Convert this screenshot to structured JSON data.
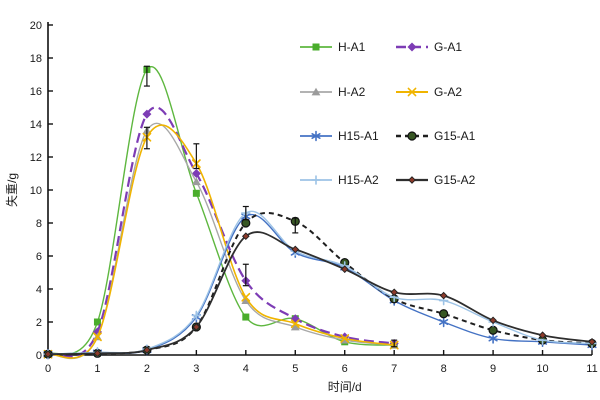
{
  "chart_data": {
    "type": "line",
    "title": "",
    "xlabel": "时间/d",
    "ylabel": "失重/g",
    "xlim": [
      0,
      11
    ],
    "ylim": [
      0,
      20
    ],
    "xticks": [
      0,
      1,
      2,
      3,
      4,
      5,
      6,
      7,
      8,
      9,
      10,
      11
    ],
    "yticks": [
      0,
      2,
      4,
      6,
      8,
      10,
      12,
      14,
      16,
      18,
      20
    ],
    "grid": false,
    "legend_position": "inside-top-center",
    "legend_columns": 2,
    "error_bar_color": "#111111",
    "series": [
      {
        "name": "H-A1",
        "color": "#5eb73f",
        "marker": "square",
        "marker_fill": "#4aad2c",
        "dash": "solid",
        "width": 1.4,
        "x": [
          0,
          1,
          2,
          3,
          4,
          5,
          6,
          7
        ],
        "y": [
          0.05,
          2.0,
          17.3,
          9.8,
          2.3,
          2.2,
          0.8,
          0.6
        ]
      },
      {
        "name": "G-A1",
        "color": "#7d3cb5",
        "marker": "diamond",
        "marker_fill": "#7d3cb5",
        "dash": "dashed",
        "width": 2.2,
        "x": [
          0,
          1,
          2,
          3,
          4,
          5,
          6,
          7
        ],
        "y": [
          0.05,
          1.4,
          14.6,
          11.0,
          4.5,
          2.2,
          1.1,
          0.7
        ]
      },
      {
        "name": "H-A2",
        "color": "#a8a8a8",
        "marker": "triangle",
        "marker_fill": "#9b9b9b",
        "dash": "solid",
        "width": 1.4,
        "x": [
          0,
          1,
          2,
          3,
          4,
          5,
          6,
          7
        ],
        "y": [
          0.05,
          1.1,
          13.6,
          10.5,
          3.3,
          1.7,
          0.9,
          0.6
        ]
      },
      {
        "name": "G-A2",
        "color": "#f0b400",
        "marker": "x",
        "marker_fill": "#f0b400",
        "dash": "solid",
        "width": 1.6,
        "x": [
          0,
          1,
          2,
          3,
          4,
          5,
          6,
          7
        ],
        "y": [
          0.05,
          1.1,
          13.2,
          11.6,
          3.5,
          1.9,
          1.0,
          0.6
        ]
      },
      {
        "name": "H15-A1",
        "color": "#4472c4",
        "marker": "asterisk",
        "marker_fill": "#4472c4",
        "dash": "solid",
        "width": 1.4,
        "x": [
          0,
          1,
          2,
          3,
          4,
          5,
          6,
          7,
          8,
          9,
          10,
          11
        ],
        "y": [
          0.05,
          0.15,
          0.3,
          2.3,
          8.4,
          6.2,
          5.3,
          3.3,
          2.0,
          1.0,
          0.8,
          0.6
        ]
      },
      {
        "name": "G15-A1",
        "color": "#1f1f1f",
        "marker": "circle",
        "marker_fill": "#375623",
        "dash": "dotted",
        "width": 2.0,
        "x": [
          0,
          1,
          2,
          3,
          4,
          5,
          6,
          7,
          8,
          9,
          10,
          11
        ],
        "y": [
          0.05,
          0.1,
          0.3,
          1.7,
          8.0,
          8.1,
          5.6,
          3.4,
          2.5,
          1.5,
          0.9,
          0.7
        ]
      },
      {
        "name": "H15-A2",
        "color": "#9dc3e6",
        "marker": "plus",
        "marker_fill": "#9dc3e6",
        "dash": "solid",
        "width": 1.4,
        "x": [
          0,
          1,
          2,
          3,
          4,
          5,
          6,
          7,
          8,
          9,
          10,
          11
        ],
        "y": [
          0.05,
          0.15,
          0.35,
          2.4,
          8.6,
          6.3,
          5.4,
          3.5,
          3.3,
          2.0,
          0.9,
          0.7
        ]
      },
      {
        "name": "G15-A2",
        "color": "#2e2e2e",
        "marker": "dot",
        "marker_fill": "#8b3a2a",
        "dash": "solid",
        "width": 1.8,
        "x": [
          0,
          1,
          2,
          3,
          4,
          5,
          6,
          7,
          8,
          9,
          10,
          11
        ],
        "y": [
          0.05,
          0.1,
          0.3,
          1.7,
          7.2,
          6.4,
          5.2,
          3.8,
          3.6,
          2.1,
          1.2,
          0.8
        ]
      }
    ],
    "error_bars": [
      {
        "series": "H-A1",
        "x": 2,
        "up": 0.2,
        "down": 1.0
      },
      {
        "series": "H-A2",
        "x": 2,
        "up": 0.2,
        "down": 1.1
      },
      {
        "series": "G-A2",
        "x": 3,
        "up": 1.2,
        "down": 0.3
      },
      {
        "series": "G-A1",
        "x": 4,
        "up": 1.0,
        "down": 0.3
      },
      {
        "series": "H15-A2",
        "x": 4,
        "up": 0.4,
        "down": 0.4
      },
      {
        "series": "G15-A1",
        "x": 5,
        "up": 0.2,
        "down": 0.7
      },
      {
        "series": "G-A2",
        "x": 7,
        "up": 0.3,
        "down": 0.1
      }
    ]
  }
}
